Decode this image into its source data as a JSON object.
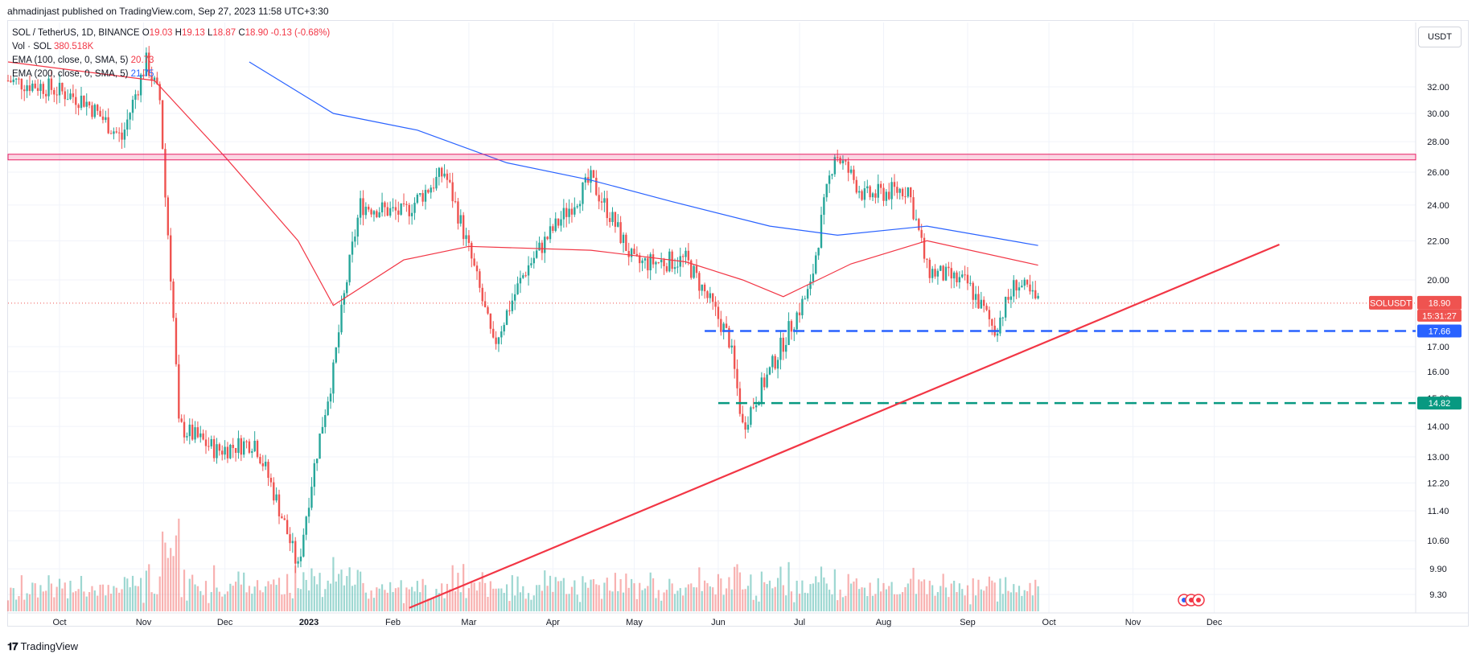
{
  "header": {
    "publisher_line": "ahmadinjast published on TradingView.com, Sep 27, 2023 11:58 UTC+3:30"
  },
  "legend": {
    "symbol": "SOL / TetherUS, 1D, BINANCE",
    "open_label": "O",
    "open": "19.03",
    "high_label": "H",
    "high": "19.13",
    "low_label": "L",
    "low": "18.87",
    "close_label": "C",
    "close": "18.90",
    "change": "-0.13 (-0.68%)",
    "volume_label": "Vol · SOL",
    "volume": "380.518K",
    "ema100_label": "EMA (100, close, 0, SMA, 5)",
    "ema100_value": "20.73",
    "ema200_label": "EMA (200, close, 0, SMA, 5)",
    "ema200_value": "21.75"
  },
  "price_axis": {
    "unit": "USDT",
    "ticks": [
      "32.00",
      "30.00",
      "28.00",
      "26.00",
      "24.00",
      "22.00",
      "20.00",
      "17.00",
      "16.00",
      "15.00",
      "14.00",
      "13.00",
      "12.20",
      "11.40",
      "10.60",
      "9.90",
      "9.30"
    ]
  },
  "price_tags": {
    "symbol_tag": "SOLUSDT",
    "last_price": "18.90",
    "countdown": "15:31:27",
    "blue_level": "17.66",
    "green_level": "14.82"
  },
  "time_axis": {
    "labels": [
      "Oct",
      "Nov",
      "Dec",
      "2023",
      "Feb",
      "Mar",
      "Apr",
      "May",
      "Jun",
      "Jul",
      "Aug",
      "Sep",
      "Oct",
      "Nov",
      "Dec"
    ]
  },
  "footer": {
    "brand": "TradingView"
  },
  "colors": {
    "up": "#26a69a",
    "down": "#ef5350",
    "ema100": "#f23645",
    "ema200": "#2962ff",
    "resistance": "#e91e63",
    "support_blue": "#2962ff",
    "support_green": "#089981",
    "trendline": "#f23645"
  },
  "chart_data": {
    "type": "line",
    "series": [
      {
        "name": "SOL / TetherUS",
        "x": [
          "2022-09-12",
          "2022-09-26",
          "2022-10-10",
          "2022-10-24",
          "2022-11-02",
          "2022-11-07",
          "2022-11-09",
          "2022-11-14",
          "2022-11-28",
          "2022-12-12",
          "2022-12-28",
          "2023-01-10",
          "2023-01-20",
          "2023-02-05",
          "2023-02-20",
          "2023-03-10",
          "2023-03-22",
          "2023-04-15",
          "2023-05-01",
          "2023-05-20",
          "2023-06-05",
          "2023-06-10",
          "2023-06-20",
          "2023-07-05",
          "2023-07-14",
          "2023-07-25",
          "2023-08-10",
          "2023-08-17",
          "2023-09-01",
          "2023-09-11",
          "2023-09-19",
          "2023-09-27"
        ],
        "values": [
          32.5,
          32.0,
          31.0,
          28.2,
          34.0,
          31.0,
          24.5,
          14.0,
          13.2,
          13.5,
          9.9,
          16.0,
          24.0,
          23.5,
          26.0,
          17.0,
          20.5,
          25.5,
          20.8,
          21.0,
          17.3,
          14.0,
          16.0,
          19.6,
          27.3,
          24.5,
          25.0,
          20.5,
          19.8,
          17.7,
          19.9,
          18.9
        ]
      },
      {
        "name": "EMA (100, close, 0, SMA, 5)",
        "x": [
          "2022-09-12",
          "2022-11-05",
          "2022-12-01",
          "2022-12-28",
          "2023-01-10",
          "2023-02-05",
          "2023-03-01",
          "2023-04-15",
          "2023-05-20",
          "2023-06-10",
          "2023-06-25",
          "2023-07-20",
          "2023-08-17",
          "2023-09-27"
        ],
        "values": [
          34.0,
          32.5,
          27.0,
          22.0,
          18.8,
          21.0,
          21.7,
          21.5,
          20.9,
          20.0,
          19.2,
          20.8,
          22.0,
          20.73
        ]
      },
      {
        "name": "EMA (200, close, 0, SMA, 5)",
        "x": [
          "2022-12-10",
          "2023-01-10",
          "2023-02-10",
          "2023-03-15",
          "2023-04-15",
          "2023-05-15",
          "2023-06-20",
          "2023-07-15",
          "2023-08-17",
          "2023-09-27"
        ],
        "values": [
          34.0,
          30.0,
          28.8,
          26.6,
          25.5,
          24.2,
          22.8,
          22.3,
          22.8,
          21.75
        ]
      }
    ],
    "levels": [
      {
        "value": 27.0,
        "style": "band"
      },
      {
        "value": 17.66,
        "style": "dashed"
      },
      {
        "value": 14.82,
        "style": "dashed"
      }
    ],
    "trendline": {
      "x": [
        "2023-02-07",
        "2023-12-25"
      ],
      "values": [
        9.0,
        21.8
      ]
    },
    "volume_unit": "SOL",
    "yscale": "log",
    "ylim": [
      9.0,
      35.0
    ],
    "xlim": [
      "2022-09-12",
      "2023-12-31"
    ],
    "grid": true
  }
}
